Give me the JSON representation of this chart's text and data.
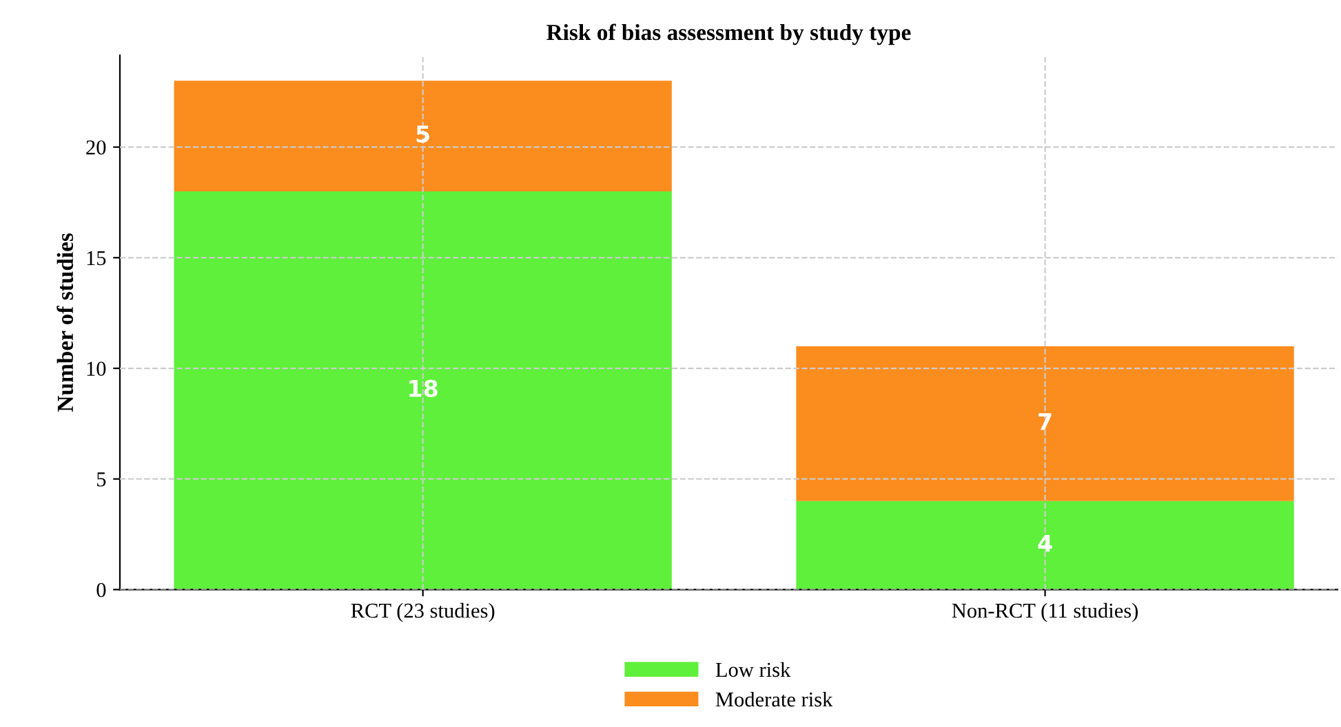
{
  "chart_data": {
    "type": "bar",
    "title": "Risk of bias assessment by study type",
    "ylabel": "Number of studies",
    "categories": [
      "RCT (23 studies)",
      "Non-RCT (11 studies)"
    ],
    "series": [
      {
        "name": "Low risk",
        "color": "#5ef03a",
        "values": [
          18,
          4
        ]
      },
      {
        "name": "Moderate risk",
        "color": "#fb8c1e",
        "values": [
          5,
          7
        ]
      }
    ],
    "stacked": true,
    "ylim": [
      0,
      24.15
    ],
    "yticks": [
      0,
      5,
      10,
      15,
      20
    ],
    "grid": true,
    "legend": "bottom",
    "data_labels": true
  }
}
